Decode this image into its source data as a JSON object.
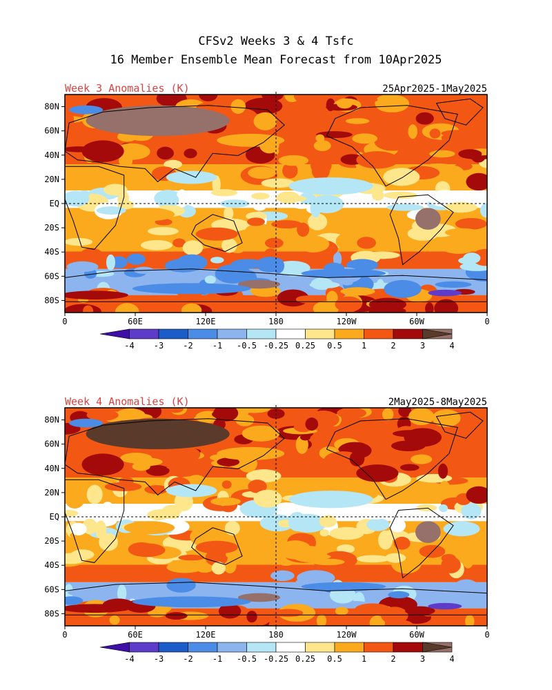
{
  "title": {
    "line1": "CFSv2 Weeks 3 & 4 Tsfc",
    "line2": "16 Member Ensemble Mean Forecast from 10Apr2025"
  },
  "panels": [
    {
      "label": "Week 3 Anomalies (K)",
      "date_range": "25Apr2025-1May2025",
      "lat_labels": [
        "80N",
        "60N",
        "40N",
        "20N",
        "EQ",
        "20S",
        "40S",
        "60S",
        "80S"
      ],
      "lon_labels": [
        "0",
        "60E",
        "120E",
        "180",
        "120W",
        "60W",
        "0"
      ]
    },
    {
      "label": "Week 4 Anomalies (K)",
      "date_range": "2May2025-8May2025",
      "lat_labels": [
        "80N",
        "60N",
        "40N",
        "20N",
        "EQ",
        "20S",
        "40S",
        "60S",
        "80S"
      ],
      "lon_labels": [
        "0",
        "60E",
        "120E",
        "180",
        "120W",
        "60W",
        "0"
      ]
    }
  ],
  "colorbar": {
    "labels": [
      "-4",
      "-3",
      "-2",
      "-1",
      "-0.5",
      "-0.25",
      "0.25",
      "0.5",
      "1",
      "2",
      "3",
      "4"
    ],
    "colors": [
      "#3e0ea5",
      "#5c3cc8",
      "#1c5cc8",
      "#4a8ce6",
      "#8cb4ee",
      "#b4e6f6",
      "#ffffff",
      "#fee68c",
      "#fbaa1e",
      "#f25814",
      "#a50a0a",
      "#96706a",
      "#5a3a2a"
    ]
  },
  "label_color": "#e04040"
}
